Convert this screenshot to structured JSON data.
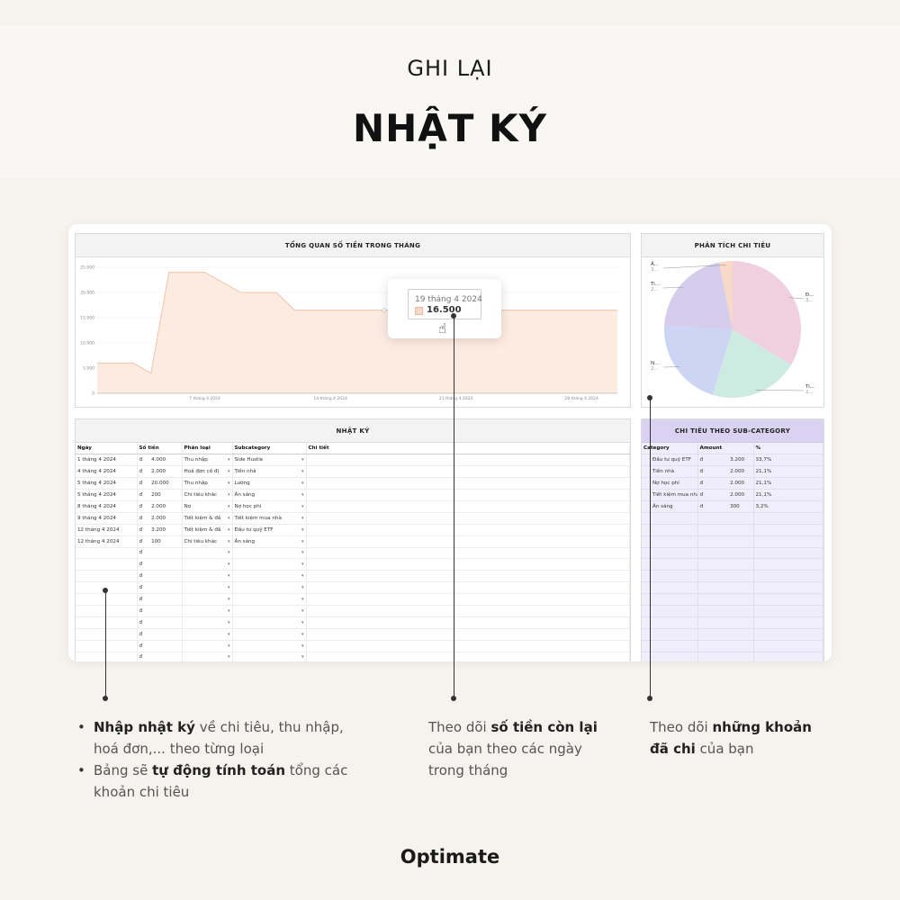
{
  "header": {
    "kicker": "GHI LẠI",
    "title": "NHẬT KÝ"
  },
  "overview": {
    "title": "TỔNG QUAN SỐ TIỀN TRONG THÁNG",
    "tooltip": {
      "date": "19 tháng 4 2024",
      "value": "16.500"
    }
  },
  "chart_data": {
    "type": "area",
    "title": "TỔNG QUAN SỐ TIỀN TRONG THÁNG",
    "x": [
      1,
      2,
      3,
      4,
      5,
      6,
      7,
      8,
      9,
      10,
      11,
      12,
      13,
      14,
      15,
      16,
      17,
      18,
      19,
      20,
      21,
      22,
      23,
      24,
      25,
      26,
      27,
      28,
      29,
      30
    ],
    "values": [
      6000,
      6000,
      6000,
      4000,
      24000,
      24000,
      24000,
      22000,
      20000,
      20000,
      20000,
      16500,
      16500,
      16500,
      16500,
      16500,
      16500,
      16500,
      16500,
      16500,
      16500,
      16500,
      16500,
      16500,
      16500,
      16500,
      16500,
      16500,
      16500,
      16500
    ],
    "yticks": [
      "0",
      "5.000",
      "10.000",
      "15.000",
      "20.000",
      "25.000"
    ],
    "xticks": [
      "7 tháng 4 2024",
      "14 tháng 4 2024",
      "21 tháng 4 2024",
      "28 tháng 4 2024"
    ],
    "ylim": [
      0,
      25000
    ],
    "colors": {
      "fill": "#fcebe1",
      "line": "#f3c3a8"
    }
  },
  "analysis": {
    "title": "PHÂN TÍCH CHI TIÊU",
    "pie": [
      {
        "label": "Đ...",
        "sub": "3...",
        "value": 33.7,
        "color": "#f0cfdf"
      },
      {
        "label": "Ti...",
        "sub": "2...",
        "value": 21.1,
        "color": "#cdebe1"
      },
      {
        "label": "N...",
        "sub": "2...",
        "value": 21.1,
        "color": "#ccd6f4"
      },
      {
        "label": "Ti...",
        "sub": "2...",
        "value": 21.1,
        "color": "#d6cdec"
      },
      {
        "label": "Ă...",
        "sub": "3...",
        "value": 3.2,
        "color": "#f8d8c6"
      }
    ]
  },
  "journal": {
    "title": "NHẬT KÝ",
    "columns": [
      "Ngày",
      "Số tiền",
      "Phân loại",
      "Subcategory",
      "Chi tiết"
    ],
    "currency": "đ",
    "rows": [
      {
        "date": "1 tháng 4 2024",
        "amount": "4.000",
        "type": "Thu nhập",
        "sub": "Side Hustle"
      },
      {
        "date": "4 tháng 4 2024",
        "amount": "2.000",
        "type": "Hoá đơn cố đị",
        "sub": "Tiền nhà"
      },
      {
        "date": "5 tháng 4 2024",
        "amount": "20.000",
        "type": "Thu nhập",
        "sub": "Lương"
      },
      {
        "date": "5 tháng 4 2024",
        "amount": "200",
        "type": "Chi tiêu khác",
        "sub": "Ăn sáng"
      },
      {
        "date": "8 tháng 4 2024",
        "amount": "2.000",
        "type": "Nợ",
        "sub": "Nợ học phí"
      },
      {
        "date": "9 tháng 4 2024",
        "amount": "2.000",
        "type": "Tiết kiệm & đầ",
        "sub": "Tiết kiệm mua nhà"
      },
      {
        "date": "12 tháng 4 2024",
        "amount": "3.200",
        "type": "Tiết kiệm & đầ",
        "sub": "Đầu tư quỹ ETF"
      },
      {
        "date": "12 tháng 4 2024",
        "amount": "100",
        "type": "Chi tiêu khác",
        "sub": "Ăn sáng"
      }
    ],
    "empty_rows": 10
  },
  "subcategory": {
    "title": "CHI TIÊU THEO SUB-CATEGORY",
    "columns": [
      "Category",
      "Amount",
      "%"
    ],
    "currency": "đ",
    "rows": [
      {
        "name": "Đầu tư quỹ ETF",
        "amount": "3.200",
        "pct": "33,7%"
      },
      {
        "name": "Tiền nhà",
        "amount": "2.000",
        "pct": "21,1%"
      },
      {
        "name": "Nợ học phí",
        "amount": "2.000",
        "pct": "21,1%"
      },
      {
        "name": "Tiết kiệm mua nhà",
        "amount": "2.000",
        "pct": "21,1%"
      },
      {
        "name": "Ăn sáng",
        "amount": "300",
        "pct": "3,2%"
      }
    ],
    "empty_rows": 13
  },
  "captions": {
    "left": {
      "b1_bold": "Nhập nhật ký",
      "b1_rest": " về chi tiêu, thu nhập, hoá đơn,... theo từng loại",
      "b2_pre": "Bảng sẽ ",
      "b2_bold": "tự động tính toán",
      "b2_rest": " tổng các khoản chi tiêu"
    },
    "middle": {
      "pre": "Theo dõi ",
      "bold": "số tiền còn lại",
      "rest": " của bạn theo các ngày trong tháng"
    },
    "right": {
      "pre": "Theo dõi ",
      "bold": "những khoản đã chi",
      "rest": " của bạn"
    }
  },
  "brand": "Optimate"
}
